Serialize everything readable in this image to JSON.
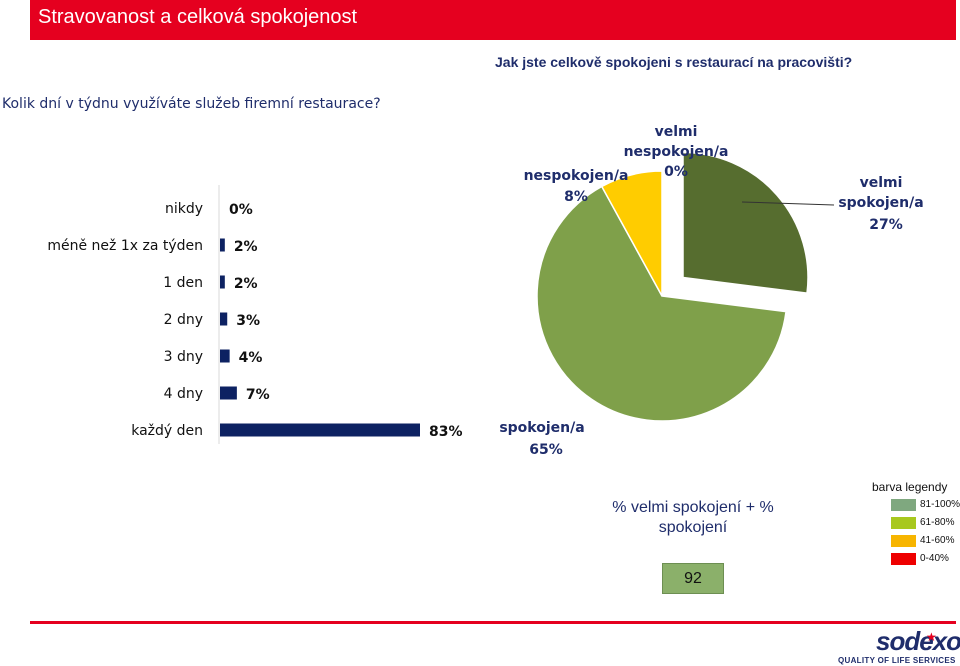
{
  "header": {
    "title": "Stravovanost a celková spokojenost"
  },
  "pie_question": "Jak jste celkově spokojeni s restaurací na pracovišti?",
  "bar_question": "Kolik dní v týdnu využíváte služeb firemní restaurace?",
  "chart_data": [
    {
      "type": "bar",
      "orientation": "horizontal",
      "categories": [
        "nikdy",
        "méně než 1x za týden",
        "1 den",
        "2 dny",
        "3 dny",
        "4 dny",
        "každý den"
      ],
      "values": [
        0,
        2,
        2,
        3,
        4,
        7,
        83
      ],
      "data_labels": [
        "0%",
        "2%",
        "2%",
        "3%",
        "4%",
        "7%",
        "83%"
      ],
      "unit": "%",
      "color": "#0d2262"
    },
    {
      "type": "pie",
      "slices": [
        {
          "label": "velmi spokojen/a",
          "value": 27,
          "data_label": "27%",
          "color": "#566d2f",
          "exploded": true
        },
        {
          "label": "spokojen/a",
          "value": 65,
          "data_label": "65%",
          "color": "#7fa04a",
          "exploded": false
        },
        {
          "label": "nespokojen/a",
          "value": 8,
          "data_label": "8%",
          "color": "#ffcc00",
          "exploded": false
        },
        {
          "label": "velmi nespokojen/a",
          "value": 0,
          "data_label": "0%",
          "color": "#e5001f",
          "exploded": false
        }
      ]
    }
  ],
  "summary": {
    "label": "% velmi spokojení + % spokojení",
    "value": "92",
    "color": "#8bb06a"
  },
  "legend": {
    "title": "barva legendy",
    "items": [
      {
        "label": "81-100%",
        "color": "#7fa87f"
      },
      {
        "label": "61-80%",
        "color": "#a8c81e"
      },
      {
        "label": "41-60%",
        "color": "#f7b500"
      },
      {
        "label": "0-40%",
        "color": "#ee0000"
      }
    ]
  },
  "footer": {
    "brand": "sodexo",
    "tagline": "QUALITY OF LIFE SERVICES"
  }
}
